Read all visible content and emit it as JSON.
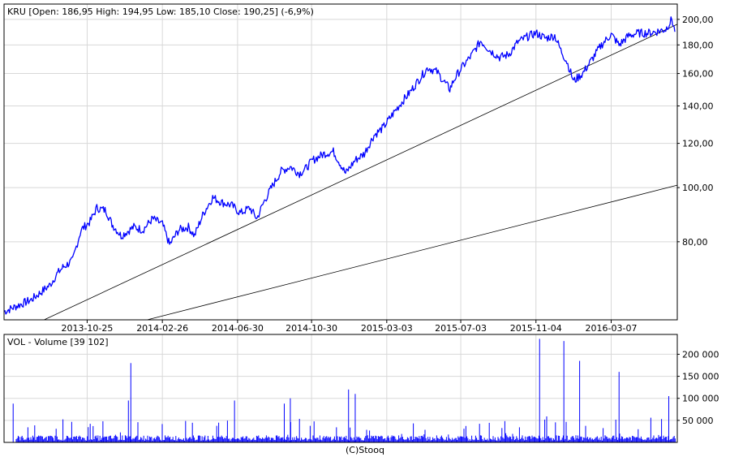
{
  "price_panel": {
    "header": "KRU [Open: 186,95  High: 194,95  Low: 185,10  Close: 190,25] (-6,9%)"
  },
  "volume_panel": {
    "header": "VOL - Volume [39 102]"
  },
  "footer": "(C)Stooq",
  "colors": {
    "series": "#0000ff",
    "grid": "#d8d8d8",
    "frame": "#000000",
    "trendline": "#000000"
  },
  "chart_data": [
    {
      "type": "line",
      "title": "KRU",
      "scale": "log",
      "ylim": [
        58,
        213
      ],
      "xlim": [
        "2013-06-10",
        "2016-06-24"
      ],
      "yticks": [
        80,
        100,
        120,
        140,
        160,
        180,
        200
      ],
      "ytick_labels": [
        "80,00",
        "100,00",
        "120,00",
        "140,00",
        "160,00",
        "180,00",
        "200,00"
      ],
      "xticks": [
        "2013-10-25",
        "2014-02-26",
        "2014-06-30",
        "2014-10-30",
        "2015-03-03",
        "2015-07-03",
        "2015-11-04",
        "2016-03-07"
      ],
      "grid": true,
      "last_bar": {
        "open": 186.95,
        "high": 194.95,
        "low": 185.1,
        "close": 190.25,
        "change_pct": -6.9
      },
      "series": [
        {
          "values": [
            [
              "2013-06-10",
              60
            ],
            [
              "2013-06-25",
              61
            ],
            [
              "2013-07-10",
              62
            ],
            [
              "2013-07-25",
              63
            ],
            [
              "2013-08-10",
              65
            ],
            [
              "2013-08-25",
              67
            ],
            [
              "2013-09-05",
              70
            ],
            [
              "2013-09-15",
              72
            ],
            [
              "2013-10-01",
              74
            ],
            [
              "2013-10-15",
              84
            ],
            [
              "2013-10-30",
              87
            ],
            [
              "2013-11-10",
              92
            ],
            [
              "2013-11-25",
              91
            ],
            [
              "2013-12-05",
              86
            ],
            [
              "2013-12-20",
              82
            ],
            [
              "2014-01-10",
              85
            ],
            [
              "2014-01-25",
              84
            ],
            [
              "2014-02-10",
              88
            ],
            [
              "2014-02-26",
              86
            ],
            [
              "2014-03-10",
              79
            ],
            [
              "2014-03-25",
              84
            ],
            [
              "2014-04-10",
              85
            ],
            [
              "2014-04-20",
              82
            ],
            [
              "2014-05-05",
              90
            ],
            [
              "2014-05-20",
              96
            ],
            [
              "2014-06-05",
              94
            ],
            [
              "2014-06-20",
              93
            ],
            [
              "2014-07-05",
              90
            ],
            [
              "2014-07-20",
              92
            ],
            [
              "2014-08-01",
              88
            ],
            [
              "2014-08-12",
              94
            ],
            [
              "2014-08-25",
              100
            ],
            [
              "2014-09-10",
              107
            ],
            [
              "2014-09-25",
              109
            ],
            [
              "2014-10-10",
              106
            ],
            [
              "2014-10-20",
              108
            ],
            [
              "2014-11-01",
              112
            ],
            [
              "2014-11-20",
              115
            ],
            [
              "2014-12-05",
              116
            ],
            [
              "2014-12-15",
              111
            ],
            [
              "2014-12-25",
              106
            ],
            [
              "2015-01-10",
              112
            ],
            [
              "2015-01-25",
              115
            ],
            [
              "2015-02-10",
              124
            ],
            [
              "2015-02-25",
              128
            ],
            [
              "2015-03-10",
              134
            ],
            [
              "2015-03-25",
              141
            ],
            [
              "2015-04-10",
              148
            ],
            [
              "2015-04-25",
              156
            ],
            [
              "2015-05-10",
              164
            ],
            [
              "2015-05-25",
              161
            ],
            [
              "2015-06-05",
              155
            ],
            [
              "2015-06-15",
              150
            ],
            [
              "2015-06-22",
              156
            ],
            [
              "2015-07-03",
              163
            ],
            [
              "2015-07-20",
              172
            ],
            [
              "2015-08-05",
              183
            ],
            [
              "2015-08-20",
              176
            ],
            [
              "2015-09-05",
              171
            ],
            [
              "2015-09-20",
              173
            ],
            [
              "2015-10-05",
              182
            ],
            [
              "2015-10-20",
              186
            ],
            [
              "2015-11-04",
              189
            ],
            [
              "2015-11-20",
              185
            ],
            [
              "2015-12-05",
              187
            ],
            [
              "2015-12-15",
              176
            ],
            [
              "2015-12-25",
              168
            ],
            [
              "2016-01-05",
              155
            ],
            [
              "2016-01-20",
              160
            ],
            [
              "2016-02-05",
              170
            ],
            [
              "2016-02-20",
              180
            ],
            [
              "2016-03-07",
              188
            ],
            [
              "2016-03-20",
              180
            ],
            [
              "2016-04-05",
              187
            ],
            [
              "2016-04-20",
              189
            ],
            [
              "2016-05-05",
              189
            ],
            [
              "2016-05-20",
              190
            ],
            [
              "2016-06-05",
              192
            ],
            [
              "2016-06-15",
              200
            ],
            [
              "2016-06-20",
              190
            ]
          ]
        }
      ],
      "trendlines": [
        {
          "from": [
            "2013-08-15",
            58
          ],
          "to": [
            "2016-06-24",
            196
          ]
        },
        {
          "from": [
            "2014-02-01",
            58
          ],
          "to": [
            "2016-06-24",
            101
          ]
        }
      ]
    },
    {
      "type": "bar",
      "title": "VOL - Volume",
      "ylim": [
        0,
        245000
      ],
      "yticks": [
        50000,
        100000,
        150000,
        200000
      ],
      "ytick_labels": [
        "50 000",
        "100 000",
        "150 000",
        "200 000"
      ],
      "grid": true,
      "spikes": [
        {
          "date": "2013-06-25",
          "value": 88000
        },
        {
          "date": "2013-11-20",
          "value": 48000
        },
        {
          "date": "2014-01-05",
          "value": 180000
        },
        {
          "date": "2014-01-01",
          "value": 95000
        },
        {
          "date": "2014-06-25",
          "value": 95000
        },
        {
          "date": "2014-09-15",
          "value": 88000
        },
        {
          "date": "2014-09-25",
          "value": 100000
        },
        {
          "date": "2014-12-30",
          "value": 120000
        },
        {
          "date": "2015-01-10",
          "value": 110000
        },
        {
          "date": "2015-11-10",
          "value": 235000
        },
        {
          "date": "2015-12-20",
          "value": 230000
        },
        {
          "date": "2016-01-15",
          "value": 185000
        },
        {
          "date": "2016-03-20",
          "value": 160000
        },
        {
          "date": "2016-06-10",
          "value": 105000
        }
      ]
    }
  ]
}
